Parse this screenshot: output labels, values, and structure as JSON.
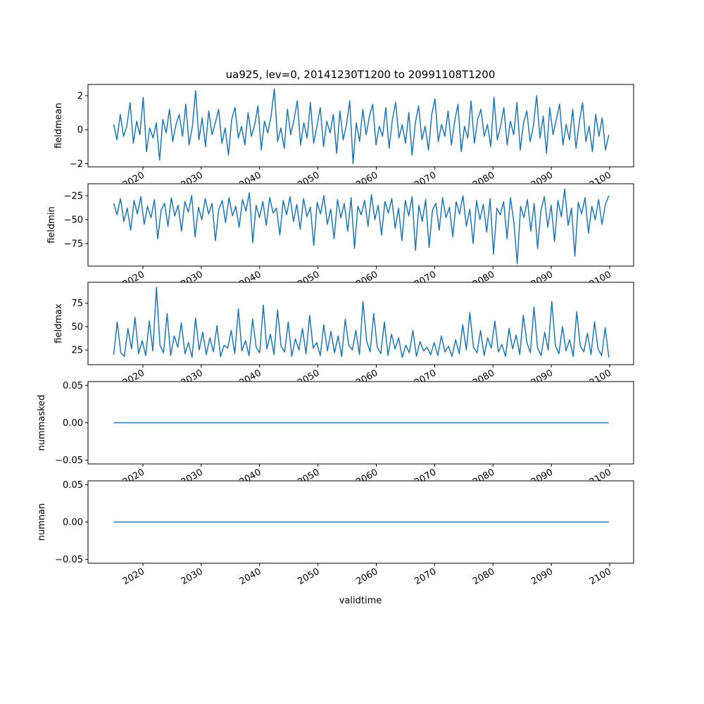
{
  "chart_data": [
    {
      "type": "line",
      "title": "ua925, lev=0, 20141230T1200 to 20991108T1200",
      "ylabel": "fieldmean",
      "xlabel": "",
      "x_range_years": [
        2014.99,
        2099.85
      ],
      "xticks": [
        "2020",
        "2030",
        "2040",
        "2050",
        "2060",
        "2070",
        "2080",
        "2090",
        "2100"
      ],
      "yticks": [
        {
          "v": 2,
          "label": "2"
        },
        {
          "v": 0,
          "label": "0"
        },
        {
          "v": -2,
          "label": "−2"
        }
      ],
      "ylim": [
        -2.19,
        2.66
      ],
      "color": "#1f77b4",
      "values": [
        0.3,
        -0.6,
        0.9,
        -0.4,
        0.2,
        1.6,
        -0.8,
        0.5,
        -0.3,
        1.9,
        -1.3,
        0.1,
        -0.5,
        0.4,
        -1.8,
        0.6,
        -0.2,
        1.2,
        -0.7,
        0.3,
        0.9,
        -0.4,
        1.5,
        -0.9,
        0.2,
        2.3,
        -0.6,
        0.7,
        -1.0,
        1.1,
        -0.3,
        0.4,
        1.2,
        -0.8,
        0.1,
        -1.5,
        0.6,
        1.3,
        -0.5,
        0.2,
        -0.9,
        1.0,
        -0.4,
        0.3,
        1.4,
        -1.2,
        0.5,
        -0.2,
        0.8,
        2.4,
        -0.7,
        0.1,
        -1.1,
        1.2,
        -0.3,
        0.6,
        1.7,
        -0.9,
        0.4,
        -0.5,
        1.6,
        -0.8,
        0.2,
        1.3,
        -1.0,
        0.5,
        -0.2,
        0.9,
        -1.4,
        1.1,
        -0.6,
        0.3,
        1.7,
        -2.0,
        0.4,
        -0.7,
        1.2,
        -0.3,
        0.8,
        1.5,
        -0.9,
        0.2,
        -0.4,
        1.3,
        -1.1,
        0.6,
        1.6,
        -0.5,
        0.3,
        -0.8,
        1.0,
        -1.5,
        0.4,
        1.4,
        -0.6,
        0.2,
        -1.2,
        0.9,
        1.8,
        -0.7,
        0.3,
        -0.4,
        1.1,
        -0.9,
        0.5,
        1.5,
        -1.3,
        0.2,
        -0.5,
        1.7,
        -0.8,
        0.6,
        1.2,
        -0.4,
        0.3,
        -1.0,
        1.9,
        -0.6,
        0.2,
        1.3,
        -0.9,
        0.5,
        -0.3,
        1.6,
        -1.2,
        0.4,
        1.1,
        -0.7,
        0.2,
        2.0,
        -0.5,
        0.8,
        -1.4,
        1.3,
        -0.3,
        0.6,
        1.5,
        -0.9,
        0.3,
        -0.6,
        1.2,
        -1.1,
        0.4,
        1.6,
        -0.7,
        0.2,
        -1.3,
        0.9,
        -0.4,
        0.7,
        -1.2,
        -0.3
      ]
    },
    {
      "type": "line",
      "ylabel": "fieldmin",
      "x_range_years": [
        2014.99,
        2099.85
      ],
      "xticks": [
        "2020",
        "2030",
        "2040",
        "2050",
        "2060",
        "2070",
        "2080",
        "2090",
        "2100"
      ],
      "yticks": [
        {
          "v": -25,
          "label": "−25"
        },
        {
          "v": -50,
          "label": "−50"
        },
        {
          "v": -75,
          "label": "−75"
        }
      ],
      "ylim": [
        -98.5,
        -12.5
      ],
      "color": "#1f77b4",
      "values": [
        -33,
        -45,
        -28,
        -52,
        -38,
        -61,
        -30,
        -44,
        -26,
        -55,
        -36,
        -48,
        -29,
        -70,
        -40,
        -33,
        -57,
        -27,
        -46,
        -35,
        -62,
        -31,
        -42,
        -25,
        -68,
        -37,
        -50,
        -28,
        -44,
        -33,
        -72,
        -39,
        -30,
        -53,
        -27,
        -46,
        -36,
        -58,
        -29,
        -41,
        -22,
        -74,
        -35,
        -48,
        -31,
        -56,
        -27,
        -43,
        -38,
        -66,
        -30,
        -45,
        -26,
        -52,
        -34,
        -60,
        -28,
        -47,
        -37,
        -77,
        -32,
        -44,
        -25,
        -55,
        -39,
        -70,
        -29,
        -48,
        -33,
        -62,
        -27,
        -80,
        -36,
        -45,
        -30,
        -57,
        -24,
        -50,
        -35,
        -66,
        -31,
        -43,
        -28,
        -59,
        -38,
        -72,
        -30,
        -46,
        -26,
        -82,
        -35,
        -52,
        -29,
        -79,
        -40,
        -33,
        -61,
        -27,
        -48,
        -37,
        -68,
        -31,
        -44,
        -25,
        -57,
        -39,
        -75,
        -30,
        -50,
        -34,
        -63,
        -28,
        -86,
        -38,
        -45,
        -31,
        -70,
        -27,
        -53,
        -96,
        -36,
        -48,
        -29,
        -62,
        -33,
        -80,
        -40,
        -26,
        -58,
        -35,
        -73,
        -30,
        -47,
        -18,
        -56,
        -38,
        -88,
        -32,
        -44,
        -27,
        -64,
        -36,
        -50,
        -29,
        -55,
        -34,
        -25
      ]
    },
    {
      "type": "line",
      "ylabel": "fieldmax",
      "x_range_years": [
        2014.99,
        2099.85
      ],
      "xticks": [
        "2020",
        "2030",
        "2040",
        "2050",
        "2060",
        "2070",
        "2080",
        "2090",
        "2100"
      ],
      "yticks": [
        {
          "v": 75,
          "label": "75"
        },
        {
          "v": 50,
          "label": "50"
        },
        {
          "v": 25,
          "label": "25"
        }
      ],
      "ylim": [
        9.3,
        97.4
      ],
      "color": "#1f77b4",
      "values": [
        20,
        55,
        22,
        18,
        48,
        26,
        60,
        21,
        35,
        19,
        56,
        24,
        92,
        30,
        22,
        64,
        19,
        40,
        28,
        54,
        21,
        33,
        17,
        59,
        25,
        44,
        20,
        38,
        23,
        51,
        18,
        30,
        27,
        46,
        21,
        69,
        24,
        35,
        19,
        58,
        28,
        22,
        73,
        26,
        42,
        20,
        68,
        29,
        23,
        55,
        18,
        37,
        25,
        48,
        21,
        62,
        27,
        33,
        19,
        52,
        24,
        45,
        22,
        40,
        18,
        58,
        30,
        25,
        46,
        20,
        77,
        35,
        23,
        64,
        28,
        21,
        55,
        19,
        42,
        26,
        38,
        17,
        30,
        22,
        46,
        18,
        34,
        24,
        28,
        20,
        33,
        19,
        40,
        23,
        29,
        18,
        36,
        21,
        52,
        25,
        65,
        28,
        22,
        46,
        19,
        38,
        27,
        56,
        23,
        31,
        18,
        48,
        26,
        41,
        20,
        62,
        33,
        22,
        71,
        27,
        19,
        44,
        25,
        77,
        30,
        21,
        50,
        24,
        36,
        18,
        66,
        29,
        23,
        43,
        20,
        55,
        26,
        19,
        49,
        17
      ]
    },
    {
      "type": "line",
      "ylabel": "nummasked",
      "x_range_years": [
        2014.99,
        2099.85
      ],
      "xticks": [
        "2020",
        "2030",
        "2040",
        "2050",
        "2060",
        "2070",
        "2080",
        "2090",
        "2100"
      ],
      "yticks": [
        {
          "v": 0.05,
          "label": "0.05"
        },
        {
          "v": 0,
          "label": "0.00"
        },
        {
          "v": -0.05,
          "label": "−0.05"
        }
      ],
      "ylim": [
        -0.055,
        0.055
      ],
      "color": "#1f77b4",
      "values": [
        0,
        0
      ]
    },
    {
      "type": "line",
      "ylabel": "numnan",
      "xlabel": "validtime",
      "x_range_years": [
        2014.99,
        2099.85
      ],
      "xticks": [
        "2020",
        "2030",
        "2040",
        "2050",
        "2060",
        "2070",
        "2080",
        "2090",
        "2100"
      ],
      "yticks": [
        {
          "v": 0.05,
          "label": "0.05"
        },
        {
          "v": 0,
          "label": "0.00"
        },
        {
          "v": -0.05,
          "label": "−0.05"
        }
      ],
      "ylim": [
        -0.055,
        0.055
      ],
      "color": "#1f77b4",
      "values": [
        0,
        0
      ]
    }
  ]
}
